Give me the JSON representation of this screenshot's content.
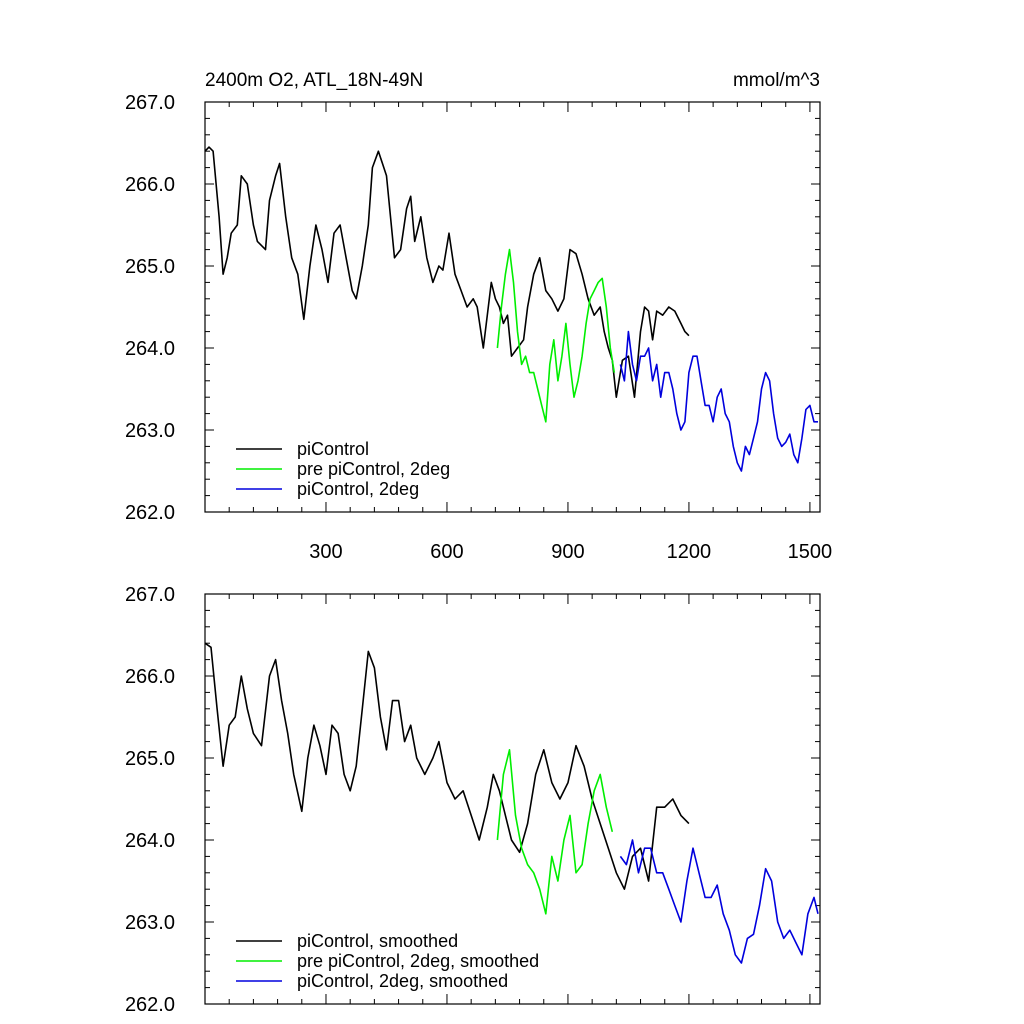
{
  "chart_data": [
    {
      "type": "line",
      "title": "2400m O2, ATL_18N-49N",
      "units": "mmol/m^3",
      "xlabel": "",
      "ylabel": "",
      "xlim": [
        0,
        1525
      ],
      "ylim": [
        262,
        267
      ],
      "xticks": [
        300,
        600,
        900,
        1200,
        1500
      ],
      "xtick_labels": [
        "300",
        "600",
        "900",
        "1200",
        "1500"
      ],
      "yticks": [
        262,
        263,
        264,
        265,
        266,
        267
      ],
      "ytick_labels": [
        "262.0",
        "263.0",
        "264.0",
        "265.0",
        "266.0",
        "267.0"
      ],
      "legend_position": "bottom-left",
      "series": [
        {
          "name": "piControl",
          "color": "#000000",
          "x": [
            0,
            10,
            20,
            35,
            45,
            55,
            65,
            80,
            90,
            105,
            120,
            130,
            150,
            160,
            175,
            185,
            200,
            215,
            230,
            245,
            260,
            275,
            290,
            305,
            320,
            335,
            350,
            365,
            375,
            390,
            405,
            415,
            430,
            450,
            460,
            470,
            485,
            500,
            510,
            520,
            535,
            550,
            565,
            580,
            590,
            605,
            620,
            635,
            650,
            665,
            675,
            690,
            700,
            710,
            720,
            730,
            740,
            750,
            760,
            775,
            790,
            800,
            815,
            830,
            845,
            860,
            875,
            890,
            905,
            920,
            935,
            950,
            965,
            980,
            990,
            1000,
            1010,
            1020,
            1035,
            1050,
            1065,
            1080,
            1090,
            1100,
            1110,
            1120,
            1135,
            1150,
            1165,
            1180,
            1190,
            1200
          ],
          "y": [
            266.4,
            266.45,
            266.4,
            265.6,
            264.9,
            265.1,
            265.4,
            265.5,
            266.1,
            266.0,
            265.5,
            265.3,
            265.2,
            265.8,
            266.1,
            266.25,
            265.6,
            265.1,
            264.9,
            264.35,
            265.0,
            265.5,
            265.2,
            264.8,
            265.4,
            265.5,
            265.1,
            264.7,
            264.6,
            265.0,
            265.5,
            266.2,
            266.4,
            266.1,
            265.6,
            265.1,
            265.2,
            265.7,
            265.85,
            265.3,
            265.6,
            265.1,
            264.8,
            265.0,
            264.95,
            265.4,
            264.9,
            264.7,
            264.5,
            264.6,
            264.5,
            264.0,
            264.4,
            264.8,
            264.6,
            264.5,
            264.3,
            264.4,
            263.9,
            264.0,
            264.1,
            264.5,
            264.9,
            265.1,
            264.7,
            264.6,
            264.45,
            264.6,
            265.2,
            265.15,
            264.9,
            264.6,
            264.4,
            264.5,
            264.2,
            264.0,
            263.85,
            263.4,
            263.85,
            263.9,
            263.4,
            264.2,
            264.5,
            264.45,
            264.1,
            264.45,
            264.4,
            264.5,
            264.45,
            264.3,
            264.2,
            264.15
          ]
        },
        {
          "name": "pre piControl, 2deg",
          "color": "#00ee00",
          "x": [
            725,
            735,
            745,
            755,
            765,
            775,
            785,
            795,
            805,
            815,
            825,
            835,
            845,
            855,
            865,
            875,
            885,
            895,
            905,
            915,
            925,
            935,
            945,
            955,
            965,
            975,
            985,
            995,
            1005,
            1015
          ],
          "y": [
            264.0,
            264.5,
            264.9,
            265.2,
            264.8,
            264.2,
            263.8,
            263.9,
            263.7,
            263.7,
            263.5,
            263.3,
            263.1,
            263.8,
            264.1,
            263.6,
            263.9,
            264.3,
            263.8,
            263.4,
            263.6,
            263.9,
            264.3,
            264.6,
            264.7,
            264.8,
            264.85,
            264.5,
            264.0,
            263.7
          ],
          "note": "visible wiggle pattern approximated"
        },
        {
          "name": "piControl, 2deg",
          "color": "#0000dd",
          "x": [
            1030,
            1040,
            1050,
            1060,
            1070,
            1080,
            1090,
            1100,
            1110,
            1120,
            1130,
            1140,
            1150,
            1160,
            1170,
            1180,
            1190,
            1200,
            1210,
            1220,
            1230,
            1240,
            1250,
            1260,
            1270,
            1280,
            1290,
            1300,
            1310,
            1320,
            1330,
            1340,
            1350,
            1360,
            1370,
            1380,
            1390,
            1400,
            1410,
            1420,
            1430,
            1440,
            1450,
            1460,
            1470,
            1480,
            1490,
            1500,
            1510,
            1520
          ],
          "y": [
            263.8,
            263.6,
            264.2,
            263.8,
            263.6,
            263.9,
            263.9,
            264.0,
            263.6,
            263.8,
            263.4,
            263.7,
            263.7,
            263.5,
            263.2,
            263.0,
            263.1,
            263.7,
            263.9,
            263.9,
            263.6,
            263.3,
            263.3,
            263.1,
            263.4,
            263.5,
            263.2,
            263.1,
            262.8,
            262.6,
            262.5,
            262.8,
            262.7,
            262.9,
            263.1,
            263.5,
            263.7,
            263.6,
            263.2,
            262.9,
            262.8,
            262.85,
            262.95,
            262.7,
            262.6,
            262.9,
            263.25,
            263.3,
            263.1,
            263.1
          ]
        }
      ],
      "legend": [
        {
          "label": "piControl",
          "color": "#000000"
        },
        {
          "label": "pre piControl, 2deg",
          "color": "#00ee00"
        },
        {
          "label": "piControl, 2deg",
          "color": "#0000dd"
        }
      ]
    },
    {
      "type": "line",
      "title": "",
      "units": "",
      "xlabel": "",
      "ylabel": "",
      "xlim": [
        0,
        1525
      ],
      "ylim": [
        262,
        267
      ],
      "xticks": [
        300,
        600,
        900,
        1200,
        1500
      ],
      "xtick_labels": [],
      "yticks": [
        262,
        263,
        264,
        265,
        266,
        267
      ],
      "ytick_labels": [
        "262.0",
        "263.0",
        "264.0",
        "265.0",
        "266.0",
        "267.0"
      ],
      "legend_position": "bottom-left",
      "series": [
        {
          "name": "piControl, smoothed",
          "color": "#000000",
          "x": [
            0,
            15,
            30,
            45,
            60,
            75,
            90,
            105,
            120,
            140,
            160,
            175,
            190,
            205,
            220,
            240,
            255,
            270,
            285,
            300,
            315,
            330,
            345,
            360,
            375,
            390,
            405,
            420,
            435,
            450,
            465,
            480,
            495,
            510,
            525,
            545,
            565,
            580,
            600,
            620,
            640,
            660,
            680,
            700,
            715,
            730,
            745,
            760,
            780,
            800,
            820,
            840,
            860,
            880,
            900,
            920,
            940,
            960,
            980,
            1000,
            1020,
            1040,
            1060,
            1080,
            1100,
            1120,
            1140,
            1160,
            1180,
            1200
          ],
          "y": [
            266.4,
            266.35,
            265.6,
            264.9,
            265.4,
            265.5,
            266.0,
            265.6,
            265.3,
            265.15,
            266.0,
            266.2,
            265.7,
            265.3,
            264.8,
            264.35,
            265.0,
            265.4,
            265.15,
            264.8,
            265.4,
            265.3,
            264.8,
            264.6,
            264.9,
            265.6,
            266.3,
            266.1,
            265.5,
            265.1,
            265.7,
            265.7,
            265.2,
            265.4,
            265.0,
            264.8,
            265.0,
            265.2,
            264.7,
            264.5,
            264.6,
            264.3,
            264.0,
            264.4,
            264.8,
            264.6,
            264.3,
            264.0,
            263.85,
            264.2,
            264.8,
            265.1,
            264.7,
            264.5,
            264.7,
            265.15,
            264.9,
            264.5,
            264.2,
            263.9,
            263.6,
            263.4,
            263.8,
            263.9,
            263.5,
            264.4,
            264.4,
            264.5,
            264.3,
            264.2
          ],
          "note": "visible wiggle pattern approximated"
        },
        {
          "name": "pre piControl, 2deg, smoothed",
          "color": "#00ee00",
          "x": [
            725,
            740,
            755,
            770,
            785,
            800,
            815,
            830,
            845,
            860,
            875,
            890,
            905,
            920,
            935,
            950,
            965,
            980,
            995,
            1010
          ],
          "y": [
            264.0,
            264.8,
            265.1,
            264.3,
            263.9,
            263.7,
            263.6,
            263.4,
            263.1,
            263.8,
            263.5,
            264.0,
            264.3,
            263.6,
            263.7,
            264.2,
            264.6,
            264.8,
            264.4,
            264.1
          ]
        },
        {
          "name": "piControl, 2deg, smoothed",
          "color": "#0000dd",
          "x": [
            1030,
            1045,
            1060,
            1075,
            1090,
            1105,
            1120,
            1135,
            1150,
            1165,
            1180,
            1195,
            1210,
            1225,
            1240,
            1255,
            1270,
            1285,
            1300,
            1315,
            1330,
            1345,
            1360,
            1375,
            1390,
            1405,
            1420,
            1435,
            1450,
            1465,
            1480,
            1495,
            1510,
            1520
          ],
          "y": [
            263.8,
            263.7,
            264.0,
            263.6,
            263.9,
            263.9,
            263.6,
            263.6,
            263.4,
            263.2,
            263.0,
            263.5,
            263.9,
            263.6,
            263.3,
            263.3,
            263.45,
            263.1,
            262.9,
            262.6,
            262.5,
            262.8,
            262.85,
            263.2,
            263.65,
            263.5,
            263.0,
            262.8,
            262.9,
            262.75,
            262.6,
            263.1,
            263.3,
            263.1
          ]
        }
      ],
      "legend": [
        {
          "label": "piControl, smoothed",
          "color": "#000000"
        },
        {
          "label": "pre piControl, 2deg, smoothed",
          "color": "#00ee00"
        },
        {
          "label": "piControl, 2deg, smoothed",
          "color": "#0000dd"
        }
      ]
    }
  ]
}
